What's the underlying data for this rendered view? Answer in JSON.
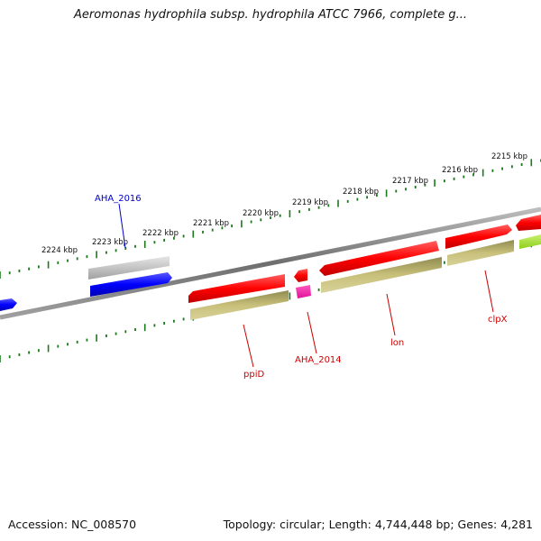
{
  "title": "Aeromonas hydrophila subsp. hydrophila ATCC 7966, complete g...",
  "footer": {
    "accession": "Accession: NC_008570",
    "summary": "Topology: circular; Length: 4,744,448 bp; Genes: 4,281"
  },
  "ticks": [
    "2215 kbp",
    "2216 kbp",
    "2217 kbp",
    "2218 kbp",
    "2219 kbp",
    "2220 kbp",
    "2221 kbp",
    "2222 kbp",
    "2223 kbp",
    "2224 kbp"
  ],
  "genes": [
    {
      "label": "AHA_2016",
      "color": "#0000cc"
    },
    {
      "label": "ppiD",
      "color": "#cc0000"
    },
    {
      "label": "AHA_2014",
      "color": "#cc0000"
    },
    {
      "label": "lon",
      "color": "#cc0000"
    },
    {
      "label": "clpX",
      "color": "#cc0000"
    }
  ],
  "colors": {
    "cds_forward": "#ff0000",
    "cds_reverse_blue": "#0000ff",
    "gene_gray": "#c0c0c0",
    "gene_olive": "#c8c07a",
    "magenta": "#ff1493",
    "lime": "#a6e22e",
    "tick": "#1a7a1a",
    "backbone": "#888888"
  }
}
